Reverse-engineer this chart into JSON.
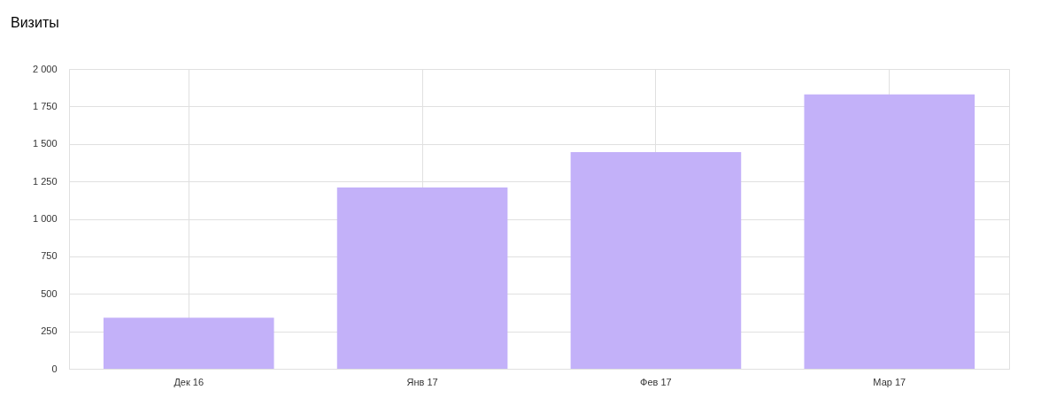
{
  "chart_data": {
    "type": "bar",
    "title": "Визиты",
    "categories": [
      "Дек 16",
      "Янв 17",
      "Фев 17",
      "Мар 17"
    ],
    "values": [
      340,
      1210,
      1445,
      1830
    ],
    "color": "#c3b1f9",
    "ylim": [
      0,
      2000
    ],
    "yticks": [
      0,
      250,
      500,
      750,
      {
        "value": 1000,
        "label": "1 000"
      },
      {
        "value": 1250,
        "label": "1 250"
      },
      {
        "value": 1500,
        "label": "1 500"
      },
      {
        "value": 1750,
        "label": "1 750"
      },
      {
        "value": 2000,
        "label": "2 000"
      }
    ],
    "grid": true
  }
}
